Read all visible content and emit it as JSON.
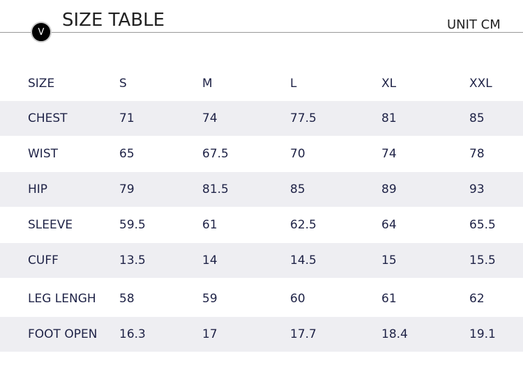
{
  "header": {
    "badge": "V",
    "title": "SIZE TABLE",
    "unit": "UNIT CM"
  },
  "table": {
    "columns": [
      "SIZE",
      "S",
      "M",
      "L",
      "XL",
      "XXL"
    ],
    "rows": [
      [
        "CHEST",
        "71",
        "74",
        "77.5",
        "81",
        "85"
      ],
      [
        "WIST",
        "65",
        "67.5",
        "70",
        "74",
        "78"
      ],
      [
        "HIP",
        "79",
        "81.5",
        "85",
        "89",
        "93"
      ],
      [
        "SLEEVE",
        "59.5",
        "61",
        "62.5",
        "64",
        "65.5"
      ],
      [
        "CUFF",
        "13.5",
        "14",
        "14.5",
        "15",
        "15.5"
      ],
      [
        "LEG LENGH",
        "58",
        "59",
        "60",
        "61",
        "62"
      ],
      [
        "FOOT OPEN",
        "16.3",
        "17",
        "17.7",
        "18.4",
        "19.1"
      ]
    ]
  }
}
